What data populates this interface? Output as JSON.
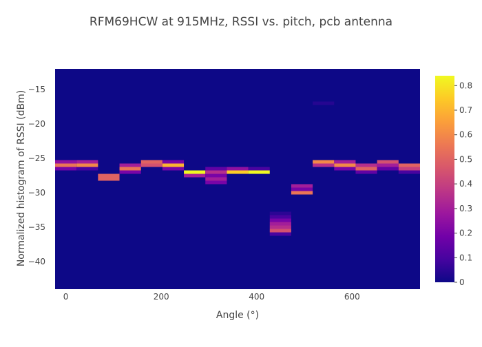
{
  "chart_data": {
    "type": "heatmap",
    "title": "RFM69HCW at 915MHz, RSSI vs. pitch, pcb antenna",
    "xlabel": "Angle (°)",
    "ylabel": "Normalized histogram of RSSI (dBm)",
    "x_ticks": [
      0,
      200,
      400,
      600
    ],
    "y_ticks": [
      -15,
      -20,
      -25,
      -30,
      -35,
      -40
    ],
    "xlim": [
      -22.5,
      742.5
    ],
    "ylim": [
      -44,
      -12
    ],
    "bin_width": 45,
    "cell_height": 0.5,
    "colorbar": {
      "min": 0,
      "max": 0.84,
      "ticks": [
        0,
        0.1,
        0.2,
        0.3,
        0.4,
        0.5,
        0.6,
        0.7,
        0.8
      ]
    },
    "colorscale": [
      "#0d0887",
      "#46039f",
      "#7201a8",
      "#9c179e",
      "#bd3786",
      "#d8576b",
      "#ed7953",
      "#fb9f3a",
      "#fdca26",
      "#f0f921"
    ],
    "background_value": 0,
    "columns": [
      {
        "angle": 0,
        "cells": [
          {
            "y": -25.5,
            "v": 0.25
          },
          {
            "y": -26,
            "v": 0.55
          },
          {
            "y": -26.5,
            "v": 0.2
          }
        ]
      },
      {
        "angle": 45,
        "cells": [
          {
            "y": -25.5,
            "v": 0.3
          },
          {
            "y": -26,
            "v": 0.6
          },
          {
            "y": -26.5,
            "v": 0.1
          }
        ]
      },
      {
        "angle": 90,
        "cells": [
          {
            "y": -27.5,
            "v": 0.5
          },
          {
            "y": -28,
            "v": 0.5
          }
        ]
      },
      {
        "angle": 135,
        "cells": [
          {
            "y": -26,
            "v": 0.3
          },
          {
            "y": -26.5,
            "v": 0.55
          },
          {
            "y": -27,
            "v": 0.2
          }
        ]
      },
      {
        "angle": 180,
        "cells": [
          {
            "y": -25.5,
            "v": 0.5
          },
          {
            "y": -26,
            "v": 0.45
          }
        ]
      },
      {
        "angle": 225,
        "cells": [
          {
            "y": -25.5,
            "v": 0.2
          },
          {
            "y": -26,
            "v": 0.7
          },
          {
            "y": -26.5,
            "v": 0.2
          }
        ]
      },
      {
        "angle": 270,
        "cells": [
          {
            "y": -27,
            "v": 0.84
          },
          {
            "y": -27.5,
            "v": 0.3
          }
        ]
      },
      {
        "angle": 315,
        "cells": [
          {
            "y": -26.5,
            "v": 0.15
          },
          {
            "y": -27,
            "v": 0.35
          },
          {
            "y": -27.5,
            "v": 0.2
          },
          {
            "y": -28,
            "v": 0.3
          },
          {
            "y": -28.5,
            "v": 0.2
          }
        ]
      },
      {
        "angle": 360,
        "cells": [
          {
            "y": -26.5,
            "v": 0.25
          },
          {
            "y": -27,
            "v": 0.75
          }
        ]
      },
      {
        "angle": 405,
        "cells": [
          {
            "y": -26.5,
            "v": 0.1
          },
          {
            "y": -27,
            "v": 0.84
          }
        ]
      },
      {
        "angle": 450,
        "cells": [
          {
            "y": -33,
            "v": 0.05
          },
          {
            "y": -33.5,
            "v": 0.1
          },
          {
            "y": -34,
            "v": 0.2
          },
          {
            "y": -34.5,
            "v": 0.3
          },
          {
            "y": -35,
            "v": 0.35
          },
          {
            "y": -35.5,
            "v": 0.45
          },
          {
            "y": -36,
            "v": 0.1
          }
        ]
      },
      {
        "angle": 495,
        "cells": [
          {
            "y": -29,
            "v": 0.3
          },
          {
            "y": -29.5,
            "v": 0.2
          },
          {
            "y": -30,
            "v": 0.55
          }
        ]
      },
      {
        "angle": 540,
        "cells": [
          {
            "y": -17,
            "v": 0.04
          },
          {
            "y": -25.5,
            "v": 0.6
          },
          {
            "y": -26,
            "v": 0.35
          }
        ]
      },
      {
        "angle": 585,
        "cells": [
          {
            "y": -25.5,
            "v": 0.3
          },
          {
            "y": -26,
            "v": 0.6
          },
          {
            "y": -26.5,
            "v": 0.2
          }
        ]
      },
      {
        "angle": 630,
        "cells": [
          {
            "y": -26,
            "v": 0.35
          },
          {
            "y": -26.5,
            "v": 0.5
          },
          {
            "y": -27,
            "v": 0.15
          }
        ]
      },
      {
        "angle": 675,
        "cells": [
          {
            "y": -25.5,
            "v": 0.45
          },
          {
            "y": -26,
            "v": 0.3
          },
          {
            "y": -26.5,
            "v": 0.15
          }
        ]
      },
      {
        "angle": 720,
        "cells": [
          {
            "y": -26,
            "v": 0.5
          },
          {
            "y": -26.5,
            "v": 0.4
          },
          {
            "y": -27,
            "v": 0.1
          }
        ]
      }
    ]
  }
}
